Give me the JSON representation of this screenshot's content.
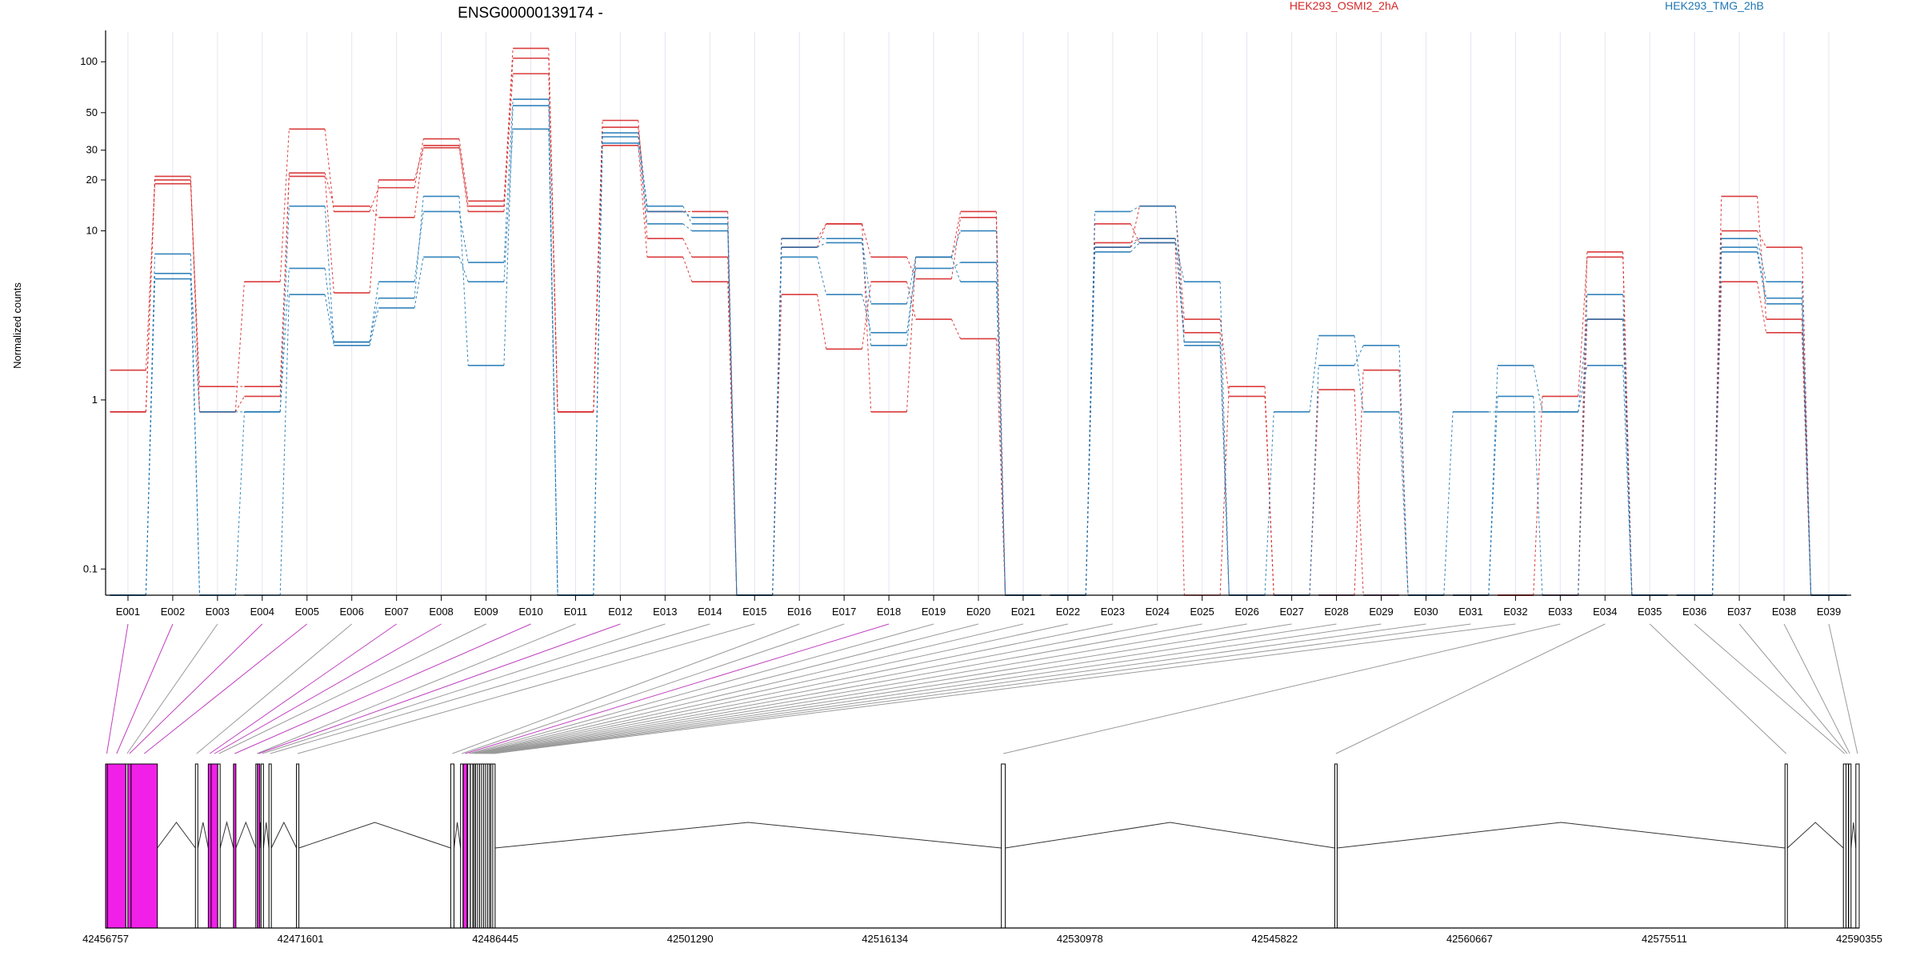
{
  "chart_data": {
    "type": "line",
    "title": "ENSG00000139174 -",
    "ylabel": "Normalized counts",
    "yscale": "log",
    "ylim": [
      0.07,
      150
    ],
    "yticks": [
      0.1,
      1,
      10,
      20,
      30,
      50,
      100
    ],
    "grid": "vertical-minor",
    "legend_position": "top",
    "legend": [
      {
        "name": "HEK293_OSMI2_2hA",
        "color": "#d62728"
      },
      {
        "name": "HEK293_TMG_2hB",
        "color": "#1f77b4"
      }
    ],
    "categories": [
      "E001",
      "E002",
      "E003",
      "E004",
      "E005",
      "E006",
      "E007",
      "E008",
      "E009",
      "E010",
      "E011",
      "E012",
      "E013",
      "E014",
      "E015",
      "E016",
      "E017",
      "E018",
      "E019",
      "E020",
      "E021",
      "E022",
      "E023",
      "E024",
      "E025",
      "E026",
      "E027",
      "E028",
      "E029",
      "E030",
      "E031",
      "E032",
      "E033",
      "E034",
      "E035",
      "E036",
      "E037",
      "E038",
      "E039"
    ],
    "series": [
      {
        "group": "HEK293_OSMI2_2hA",
        "color": "#d62728",
        "values": [
          0.85,
          21,
          0.85,
          5,
          40,
          13,
          18,
          35,
          15,
          105,
          0.85,
          45,
          9,
          7,
          0.07,
          8,
          11,
          0.85,
          7,
          13,
          0.07,
          0.07,
          8,
          14,
          3,
          1.05,
          0.07,
          0.07,
          1.5,
          0.07,
          0.07,
          0.07,
          1.05,
          7,
          0.07,
          0.07,
          10,
          8,
          0.07
        ]
      },
      {
        "group": "HEK293_OSMI2_2hA",
        "color": "#d62728",
        "values": [
          1.5,
          19,
          1.2,
          1.2,
          21,
          4.3,
          20,
          31,
          13,
          85,
          0.85,
          32,
          7,
          5,
          0.07,
          4.2,
          2,
          5,
          3,
          2.3,
          0.07,
          0.07,
          11,
          8.5,
          0.07,
          1.2,
          0.07,
          0.07,
          0.07,
          0.07,
          0.07,
          0.07,
          0.07,
          3,
          0.07,
          0.07,
          16,
          3,
          0.07
        ]
      },
      {
        "group": "HEK293_OSMI2_2hA",
        "color": "#d62728",
        "values": [
          0.85,
          20,
          0.85,
          1.05,
          22,
          14,
          12,
          32,
          14,
          120,
          0.85,
          41,
          13,
          13,
          0.07,
          9,
          11,
          7,
          5.2,
          12,
          0.07,
          0.07,
          8.5,
          9,
          2.5,
          0.07,
          0.07,
          1.15,
          0.07,
          0.07,
          0.07,
          0.07,
          0.07,
          7.5,
          0.07,
          0.07,
          5,
          2.5,
          0.07
        ]
      },
      {
        "group": "HEK293_TMG_2hB",
        "color": "#1f77b4",
        "values": [
          0.07,
          5.6,
          0.85,
          0.85,
          6,
          2.2,
          5,
          13,
          6.5,
          60,
          0.07,
          38,
          13,
          12,
          0.07,
          7,
          4.2,
          2.5,
          6,
          6.5,
          0.07,
          0.07,
          8,
          9,
          2.2,
          0.07,
          0.85,
          2.4,
          0.85,
          0.07,
          0.85,
          0.85,
          0.85,
          1.6,
          0.07,
          0.07,
          8,
          4,
          0.07
        ]
      },
      {
        "group": "HEK293_TMG_2hB",
        "color": "#1f77b4",
        "values": [
          0.07,
          5.2,
          0.07,
          0.07,
          4.2,
          2.1,
          3.5,
          7,
          5,
          40,
          0.07,
          33,
          11,
          10,
          0.07,
          9,
          9,
          3.7,
          7,
          10,
          0.07,
          0.07,
          13,
          14,
          2.1,
          0.07,
          0.07,
          0.07,
          0.07,
          0.07,
          0.07,
          1.05,
          0.07,
          4.2,
          0.07,
          0.07,
          9,
          5,
          0.07
        ]
      },
      {
        "group": "HEK293_TMG_2hB",
        "color": "#1f77b4",
        "values": [
          0.07,
          7.3,
          0.07,
          0.85,
          14,
          2.2,
          4,
          16,
          1.6,
          55,
          0.07,
          36,
          14,
          11,
          0.07,
          8,
          8.5,
          2.1,
          7,
          5,
          0.07,
          0.07,
          7.5,
          8.5,
          5,
          0.07,
          0.07,
          1.6,
          2.1,
          0.07,
          0.07,
          1.6,
          0.85,
          3,
          0.07,
          0.07,
          7.5,
          3.7,
          0.07
        ]
      }
    ],
    "gene_model": {
      "coord_ticks": [
        "42456757",
        "42471601",
        "42486445",
        "42501290",
        "42516134",
        "42530978",
        "42545822",
        "42560667",
        "42575511",
        "42590355"
      ],
      "genomic_range": [
        42456757,
        42590355
      ],
      "highlight_color": "#f020e8",
      "exons": [
        {
          "id": "E001",
          "start": 42456757,
          "end": 42456900,
          "highlight": true
        },
        {
          "id": "E002",
          "start": 42456900,
          "end": 42458300,
          "highlight": true
        },
        {
          "id": "E003",
          "start": 42458300,
          "end": 42458450,
          "highlight": false
        },
        {
          "id": "E004",
          "start": 42458450,
          "end": 42458700,
          "highlight": true
        },
        {
          "id": "E005",
          "start": 42458700,
          "end": 42460700,
          "highlight": true
        },
        {
          "id": "E006",
          "start": 42463600,
          "end": 42463750,
          "highlight": false
        },
        {
          "id": "E007",
          "start": 42464580,
          "end": 42464800,
          "highlight": true
        },
        {
          "id": "E008",
          "start": 42464800,
          "end": 42465300,
          "highlight": true
        },
        {
          "id": "E009",
          "start": 42465300,
          "end": 42465400,
          "highlight": false
        },
        {
          "id": "E010",
          "start": 42466500,
          "end": 42466650,
          "highlight": true
        },
        {
          "id": "E011",
          "start": 42468200,
          "end": 42468320,
          "highlight": false
        },
        {
          "id": "E012",
          "start": 42468320,
          "end": 42468420,
          "highlight": true
        },
        {
          "id": "E013",
          "start": 42468600,
          "end": 42468750,
          "highlight": false
        },
        {
          "id": "E014",
          "start": 42469200,
          "end": 42469330,
          "highlight": false
        },
        {
          "id": "E015",
          "start": 42471300,
          "end": 42471450,
          "highlight": false
        },
        {
          "id": "E016",
          "start": 42483050,
          "end": 42483300,
          "highlight": false
        },
        {
          "id": "E017",
          "start": 42483800,
          "end": 42483950,
          "highlight": false
        },
        {
          "id": "E018",
          "start": 42484000,
          "end": 42484300,
          "highlight": true
        },
        {
          "id": "E019",
          "start": 42484350,
          "end": 42484500,
          "highlight": false
        },
        {
          "id": "E020",
          "start": 42484550,
          "end": 42484700,
          "highlight": false
        },
        {
          "id": "E021",
          "start": 42484750,
          "end": 42484850,
          "highlight": false
        },
        {
          "id": "E022",
          "start": 42484850,
          "end": 42484950,
          "highlight": false
        },
        {
          "id": "E023",
          "start": 42484950,
          "end": 42485100,
          "highlight": false
        },
        {
          "id": "E024",
          "start": 42485100,
          "end": 42485250,
          "highlight": false
        },
        {
          "id": "E025",
          "start": 42485250,
          "end": 42485400,
          "highlight": false
        },
        {
          "id": "E026",
          "start": 42485400,
          "end": 42485550,
          "highlight": false
        },
        {
          "id": "E027",
          "start": 42485550,
          "end": 42485700,
          "highlight": false
        },
        {
          "id": "E028",
          "start": 42485700,
          "end": 42485850,
          "highlight": false
        },
        {
          "id": "E029",
          "start": 42485850,
          "end": 42486000,
          "highlight": false
        },
        {
          "id": "E030",
          "start": 42486000,
          "end": 42486100,
          "highlight": false
        },
        {
          "id": "E031",
          "start": 42486100,
          "end": 42486250,
          "highlight": false
        },
        {
          "id": "E032",
          "start": 42486250,
          "end": 42486350,
          "highlight": false
        },
        {
          "id": "E033",
          "start": 42525000,
          "end": 42525300,
          "highlight": false
        },
        {
          "id": "E034",
          "start": 42550400,
          "end": 42550550,
          "highlight": false
        },
        {
          "id": "E035",
          "start": 42584700,
          "end": 42584850,
          "highlight": false
        },
        {
          "id": "E036",
          "start": 42589150,
          "end": 42589350,
          "highlight": false
        },
        {
          "id": "E037",
          "start": 42589350,
          "end": 42589500,
          "highlight": false
        },
        {
          "id": "E038",
          "start": 42589550,
          "end": 42589700,
          "highlight": false
        },
        {
          "id": "E039",
          "start": 42590100,
          "end": 42590355,
          "highlight": false
        }
      ]
    }
  }
}
